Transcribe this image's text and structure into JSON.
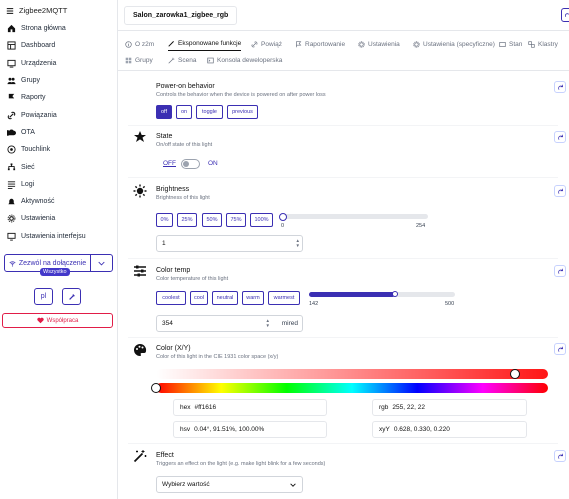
{
  "app": {
    "title": "Zigbee2MQTT"
  },
  "nav": {
    "items": [
      {
        "label": "Strona główna",
        "icon": "home-icon"
      },
      {
        "label": "Dashboard",
        "icon": "dashboard-icon"
      },
      {
        "label": "Urządzenia",
        "icon": "devices-icon"
      },
      {
        "label": "Grupy",
        "icon": "groups-icon"
      },
      {
        "label": "Raporty",
        "icon": "reports-icon"
      },
      {
        "label": "Powiązania",
        "icon": "bindings-icon"
      },
      {
        "label": "OTA",
        "icon": "ota-icon"
      },
      {
        "label": "Touchlink",
        "icon": "touchlink-icon"
      },
      {
        "label": "Sieć",
        "icon": "network-icon"
      },
      {
        "label": "Logi",
        "icon": "logs-icon"
      },
      {
        "label": "Aktywność",
        "icon": "activity-icon"
      },
      {
        "label": "Ustawienia",
        "icon": "settings-icon"
      },
      {
        "label": "Ustawienia interfejsu",
        "icon": "ui-settings-icon"
      }
    ],
    "permit_join": "Zezwól na dołączenie",
    "permit_all": "Wszystko",
    "lang": "pl",
    "coop": "Współpraca"
  },
  "device": {
    "name": "Salon_zarowka1_zigbee_rgb"
  },
  "tabs": {
    "row1": [
      "O z2m",
      "Eksponowane funkcje",
      "Powiąż",
      "Raportowanie",
      "Ustawienia",
      "Ustawienia (specyficzne)",
      "Stan",
      "Klastry"
    ],
    "row2": [
      "Grupy",
      "Scena",
      "Konsola deweloperska"
    ]
  },
  "features": {
    "power_on": {
      "title": "Power-on behavior",
      "desc": "Controls the behavior when the device is powered on after power loss",
      "options": [
        "off",
        "on",
        "toggle",
        "previous"
      ],
      "selected": "off"
    },
    "state": {
      "title": "State",
      "desc": "On/off state of this light",
      "off": "OFF",
      "on": "ON",
      "value": "OFF"
    },
    "brightness": {
      "title": "Brightness",
      "desc": "Brightness of this light",
      "presets": [
        "0%",
        "25%",
        "50%",
        "75%",
        "100%"
      ],
      "min_label": "0",
      "max_label": "254",
      "min": 0,
      "max": 254,
      "value": 1,
      "input": "1"
    },
    "color_temp": {
      "title": "Color temp",
      "desc": "Color temperature of this light",
      "presets": [
        "coolest",
        "cool",
        "neutral",
        "warm",
        "warmest"
      ],
      "min_label": "142",
      "max_label": "500",
      "min": 142,
      "max": 500,
      "value": 354,
      "input": "354",
      "unit": "mired"
    },
    "color_xy": {
      "title": "Color (X/Y)",
      "desc": "Color of this light in the CIE 1931 color space (x/y)",
      "hex_label": "hex",
      "hex": "#ff1616",
      "rgb_label": "rgb",
      "rgb": "255, 22, 22",
      "hsv_label": "hsv",
      "hsv": "0.04°, 91.51%, 100.00%",
      "xyy_label": "xyY",
      "xyy": "0.628, 0.330, 0.220",
      "color": "#ff1616",
      "hue": 0.04,
      "saturation": 0.9151
    },
    "effect": {
      "title": "Effect",
      "desc": "Triggers an effect on the light (e.g. make light blink for a few seconds)",
      "select": "Wybierz wartość"
    }
  },
  "colors": {
    "accent": "#3b2fb3",
    "danger": "#e11d48"
  }
}
